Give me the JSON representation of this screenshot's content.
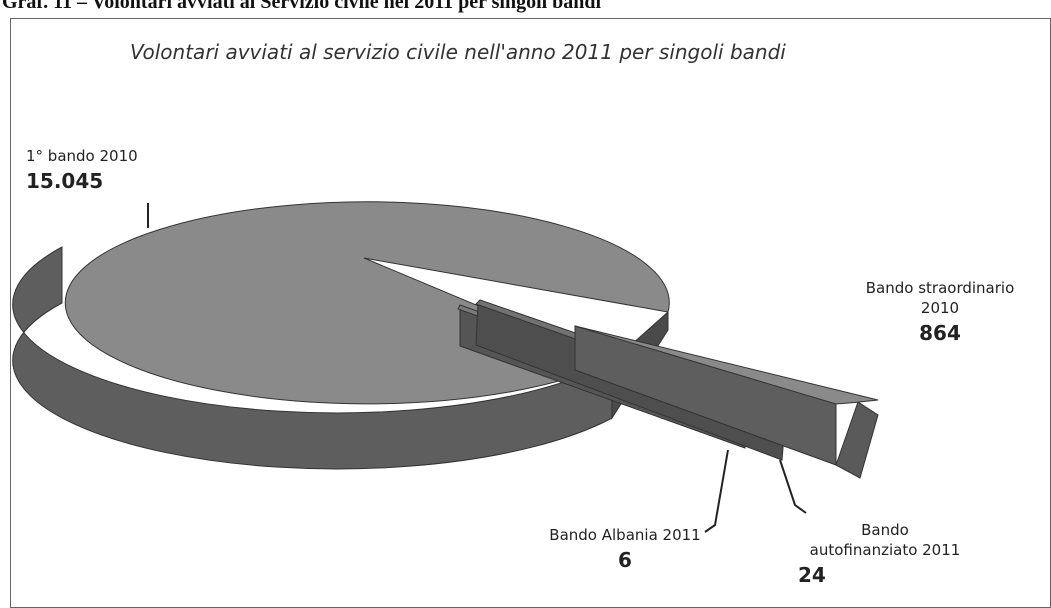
{
  "caption": "Graf. 11 – Volontari avviati al Servizio civile nel 2011 per singoli bandi",
  "chart_data": {
    "type": "pie",
    "title": "Volontari avviati al servizio civile nell'anno 2011 per singoli bandi",
    "style": "3d-exploded",
    "slices": [
      {
        "label": "1° bando 2010",
        "value": 15045,
        "value_label": "15.045"
      },
      {
        "label": "Bando straordinario 2010",
        "label_lines": [
          "Bando straordinario",
          "2010"
        ],
        "value": 864,
        "value_label": "864"
      },
      {
        "label": "Bando autofinanziato 2011",
        "label_lines": [
          "Bando",
          "autofinanziato 2011"
        ],
        "value": 24,
        "value_label": "24"
      },
      {
        "label": "Bando Albania 2011",
        "value": 6,
        "value_label": "6"
      }
    ],
    "colors": {
      "top": "#8a8a8a",
      "side": "#5e5e5e",
      "side_dark": "#4a4a4a",
      "leader": "#222222"
    }
  }
}
